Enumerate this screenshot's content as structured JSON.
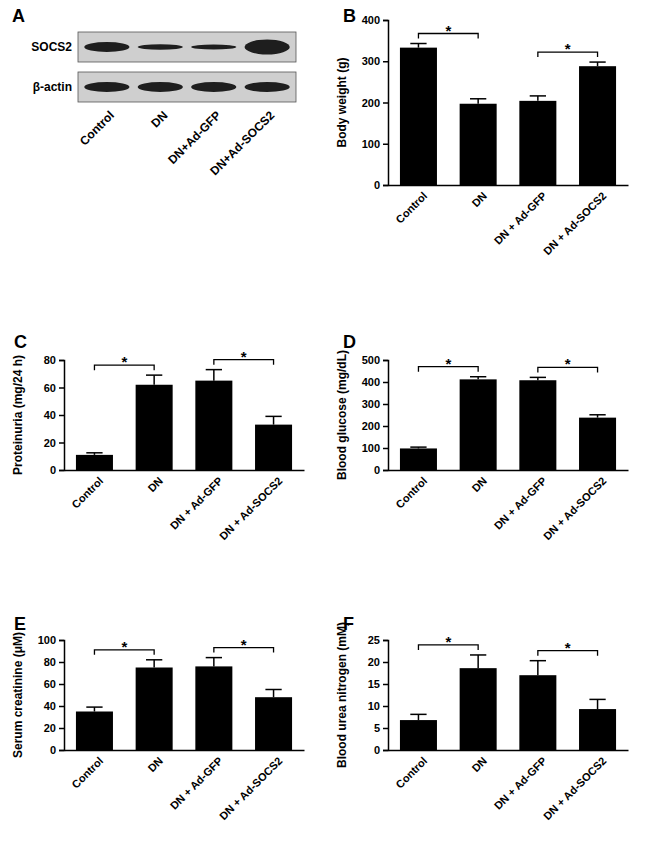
{
  "chart_data": [
    {
      "type": "blot",
      "title": "A",
      "categories": [
        "Control",
        "DN",
        "DN+Ad-GFP",
        "DN+Ad-SOCS2"
      ],
      "series": [
        {
          "name": "SOCS2",
          "values": [
            1.0,
            0.55,
            0.5,
            1.5
          ]
        },
        {
          "name": "β-actin",
          "values": [
            1.0,
            1.0,
            1.0,
            1.0
          ]
        }
      ]
    },
    {
      "type": "bar",
      "title": "B",
      "ylabel": "Body weight (g)",
      "categories": [
        "Control",
        "DN",
        "DN + Ad-GFP",
        "DN + Ad-SOCS2"
      ],
      "values": [
        333,
        197,
        204,
        288
      ],
      "errors": [
        10,
        12,
        12,
        10
      ],
      "color": "#000000",
      "ylim": [
        0,
        400
      ],
      "yticks": [
        0,
        100,
        200,
        300,
        400
      ],
      "significance": [
        {
          "between": [
            "Control",
            "DN"
          ],
          "label": "*"
        },
        {
          "between": [
            "DN + Ad-GFP",
            "DN + Ad-SOCS2"
          ],
          "label": "*"
        }
      ]
    },
    {
      "type": "bar",
      "title": "C",
      "ylabel": "Proteinuria (mg/24 h)",
      "categories": [
        "Control",
        "DN",
        "DN + Ad-GFP",
        "DN + Ad-SOCS2"
      ],
      "values": [
        11,
        62,
        65,
        33
      ],
      "errors": [
        1.5,
        7,
        8,
        6
      ],
      "color": "#000000",
      "ylim": [
        0,
        80
      ],
      "yticks": [
        0,
        20,
        40,
        60,
        80
      ],
      "significance": [
        {
          "between": [
            "Control",
            "DN"
          ],
          "label": "*"
        },
        {
          "between": [
            "DN + Ad-GFP",
            "DN + Ad-SOCS2"
          ],
          "label": "*"
        }
      ]
    },
    {
      "type": "bar",
      "title": "D",
      "ylabel": "Blood glucose (mg/dL)",
      "categories": [
        "Control",
        "DN",
        "DN + Ad-GFP",
        "DN + Ad-SOCS2"
      ],
      "values": [
        98,
        412,
        408,
        238
      ],
      "errors": [
        6,
        12,
        13,
        13
      ],
      "color": "#000000",
      "ylim": [
        0,
        500
      ],
      "yticks": [
        0,
        100,
        200,
        300,
        400,
        500
      ],
      "significance": [
        {
          "between": [
            "Control",
            "DN"
          ],
          "label": "*"
        },
        {
          "between": [
            "DN + Ad-GFP",
            "DN + Ad-SOCS2"
          ],
          "label": "*"
        }
      ]
    },
    {
      "type": "bar",
      "title": "E",
      "ylabel": "Serum creatinine (μM)",
      "categories": [
        "Control",
        "DN",
        "DN + Ad-GFP",
        "DN + Ad-SOCS2"
      ],
      "values": [
        35,
        75,
        76,
        48
      ],
      "errors": [
        4,
        7,
        8,
        7
      ],
      "color": "#000000",
      "ylim": [
        0,
        100
      ],
      "yticks": [
        0,
        20,
        40,
        60,
        80,
        100
      ],
      "significance": [
        {
          "between": [
            "Control",
            "DN"
          ],
          "label": "*"
        },
        {
          "between": [
            "DN + Ad-GFP",
            "DN + Ad-SOCS2"
          ],
          "label": "*"
        }
      ]
    },
    {
      "type": "bar",
      "title": "F",
      "ylabel": "Blood urea nitrogen (mM)",
      "categories": [
        "Control",
        "DN",
        "DN + Ad-GFP",
        "DN + Ad-SOCS2"
      ],
      "values": [
        6.8,
        18.6,
        17,
        9.3
      ],
      "errors": [
        1.3,
        3,
        3.3,
        2.2
      ],
      "color": "#000000",
      "ylim": [
        0,
        25
      ],
      "yticks": [
        0,
        5,
        10,
        15,
        20,
        25
      ],
      "significance": [
        {
          "between": [
            "Control",
            "DN"
          ],
          "label": "*"
        },
        {
          "between": [
            "DN + Ad-GFP",
            "DN + Ad-SOCS2"
          ],
          "label": "*"
        }
      ]
    }
  ]
}
